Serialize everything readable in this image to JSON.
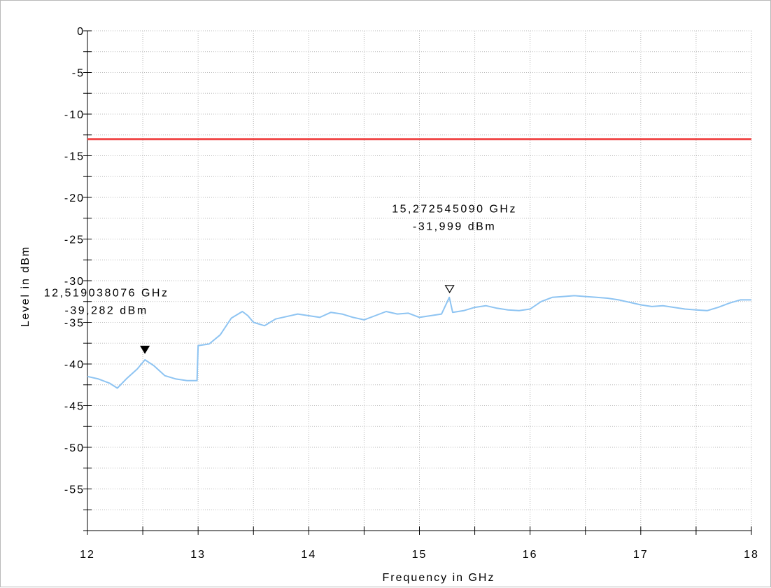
{
  "chart_data": {
    "type": "line",
    "title": "",
    "xlabel": "Frequency in GHz",
    "ylabel": "Level in dBm",
    "xlim": [
      12,
      18
    ],
    "ylim": [
      -60,
      0
    ],
    "x_ticks": [
      12,
      13,
      14,
      15,
      16,
      17,
      18
    ],
    "x_tick_labels": [
      "12",
      "13",
      "14",
      "15",
      "16",
      "17",
      "18"
    ],
    "y_ticks": [
      0,
      -5,
      -10,
      -15,
      -20,
      -25,
      -30,
      -35,
      -40,
      -45,
      -50,
      -55
    ],
    "y_tick_labels": [
      "0",
      "-5",
      "-10",
      "-15",
      "-20",
      "-25",
      "-30",
      "-35",
      "-40",
      "-45",
      "-50",
      "-55"
    ],
    "grid": true,
    "limit_line": {
      "value": -13,
      "color": "#f04848"
    },
    "series": [
      {
        "color": "#8ec4f2",
        "x": [
          12.0,
          12.1,
          12.2,
          12.27,
          12.35,
          12.45,
          12.52,
          12.6,
          12.7,
          12.8,
          12.9,
          12.99,
          13.0,
          13.1,
          13.2,
          13.3,
          13.4,
          13.45,
          13.5,
          13.6,
          13.7,
          13.8,
          13.9,
          14.0,
          14.1,
          14.2,
          14.3,
          14.4,
          14.5,
          14.6,
          14.7,
          14.8,
          14.9,
          15.0,
          15.1,
          15.2,
          15.27,
          15.3,
          15.4,
          15.5,
          15.6,
          15.7,
          15.8,
          15.9,
          16.0,
          16.1,
          16.2,
          16.3,
          16.4,
          16.5,
          16.6,
          16.7,
          16.8,
          16.9,
          17.0,
          17.1,
          17.2,
          17.3,
          17.4,
          17.5,
          17.6,
          17.7,
          17.8,
          17.9,
          18.0
        ],
        "y": [
          -41.5,
          -41.8,
          -42.3,
          -42.9,
          -41.8,
          -40.6,
          -39.5,
          -40.2,
          -41.4,
          -41.8,
          -42.0,
          -42.0,
          -37.8,
          -37.6,
          -36.5,
          -34.5,
          -33.7,
          -34.2,
          -35.0,
          -35.4,
          -34.6,
          -34.3,
          -34.0,
          -34.2,
          -34.4,
          -33.8,
          -34.0,
          -34.4,
          -34.7,
          -34.2,
          -33.7,
          -34.0,
          -33.9,
          -34.4,
          -34.2,
          -34.0,
          -32.0,
          -33.8,
          -33.6,
          -33.2,
          -33.0,
          -33.3,
          -33.5,
          -33.6,
          -33.4,
          -32.5,
          -32.0,
          -31.9,
          -31.8,
          -31.9,
          -32.0,
          -32.1,
          -32.3,
          -32.6,
          -32.9,
          -33.1,
          -33.0,
          -33.2,
          -33.4,
          -33.5,
          -33.6,
          -33.2,
          -32.7,
          -32.3,
          -32.3
        ]
      }
    ],
    "markers": [
      {
        "x": 12.519038076,
        "y": -39.282,
        "symbol": "filled-triangle",
        "freq_label": "12,519038076 GHz",
        "level_label": "-39,282 dBm"
      },
      {
        "x": 15.27254509,
        "y": -31.999,
        "symbol": "open-triangle",
        "freq_label": "15,272545090 GHz",
        "level_label": "-31,999 dBm"
      }
    ]
  }
}
